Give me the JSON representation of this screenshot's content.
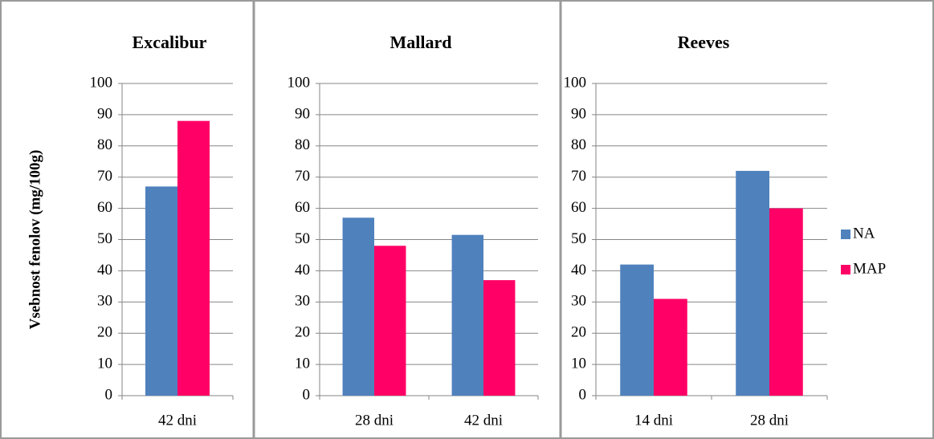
{
  "chart_data": [
    {
      "type": "bar",
      "title": "Excalibur",
      "ylabel": "Vsebnost fenolov (mg/100g)",
      "categories": [
        "42 dni"
      ],
      "series": [
        {
          "values": [
            67
          ]
        },
        {
          "values": [
            88
          ]
        }
      ],
      "ylim": [
        0,
        100
      ],
      "yticks": [
        0,
        10,
        20,
        30,
        40,
        50,
        60,
        70,
        80,
        90,
        100
      ],
      "grid": true
    },
    {
      "type": "bar",
      "title": "Mallard",
      "categories": [
        "28 dni",
        "42 dni"
      ],
      "series": [
        {
          "values": [
            57,
            51.5
          ]
        },
        {
          "values": [
            48,
            37
          ]
        }
      ],
      "ylim": [
        0,
        100
      ],
      "yticks": [
        0,
        10,
        20,
        30,
        40,
        50,
        60,
        70,
        80,
        90,
        100
      ],
      "grid": true
    },
    {
      "type": "bar",
      "title": "Reeves",
      "categories": [
        "14 dni",
        "28 dni"
      ],
      "series": [
        {
          "values": [
            42,
            72
          ]
        },
        {
          "values": [
            31,
            60
          ]
        }
      ],
      "ylim": [
        0,
        100
      ],
      "yticks": [
        0,
        10,
        20,
        30,
        40,
        50,
        60,
        70,
        80,
        90,
        100
      ],
      "grid": true
    }
  ],
  "legend": {
    "position": "right",
    "entries": [
      {
        "name": "NA",
        "color": "#4f81bd"
      },
      {
        "name": "MAP",
        "color": "#ff0066"
      }
    ]
  }
}
